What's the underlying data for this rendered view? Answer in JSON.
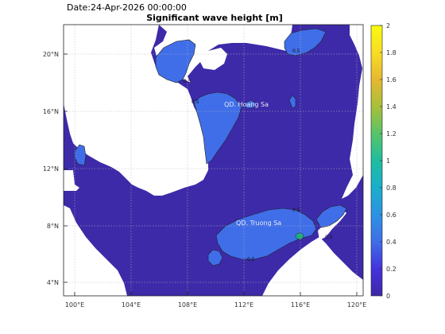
{
  "header": {
    "date_label": "Date:24-Apr-2026 00:00:00",
    "title": "Significant wave height [m]"
  },
  "map": {
    "lat_ticks": [
      "20°N",
      "16°N",
      "12°N",
      "8°N",
      "4°N"
    ],
    "lon_ticks": [
      "100°E",
      "104°E",
      "108°E",
      "112°E",
      "116°E",
      "120°E"
    ],
    "extent": {
      "lon_min": 99.2,
      "lon_max": 120.4,
      "lat_min": 3.1,
      "lat_max": 22.1
    },
    "labels": {
      "hoang_sa": "QD. Hoang Sa",
      "truong_sa": "QD. Truong Sa"
    },
    "contour_label": "0.5",
    "colors": {
      "sea_low": "#3d2aa8",
      "sea_mid": "#3f6ee8",
      "land": "#ffffff",
      "patch_green": "#1faa80"
    }
  },
  "colorbar": {
    "ticks": [
      "2",
      "1.8",
      "1.6",
      "1.4",
      "1.2",
      "1",
      "0.8",
      "0.6",
      "0.4",
      "0.2",
      "0"
    ],
    "colors": [
      "#3e26a8",
      "#4433dc",
      "#3f6ee8",
      "#2c92e4",
      "#1aaecc",
      "#1fbda0",
      "#58c468",
      "#a8bf3a",
      "#e6b830",
      "#f8dd24",
      "#f9fb0e"
    ]
  }
}
